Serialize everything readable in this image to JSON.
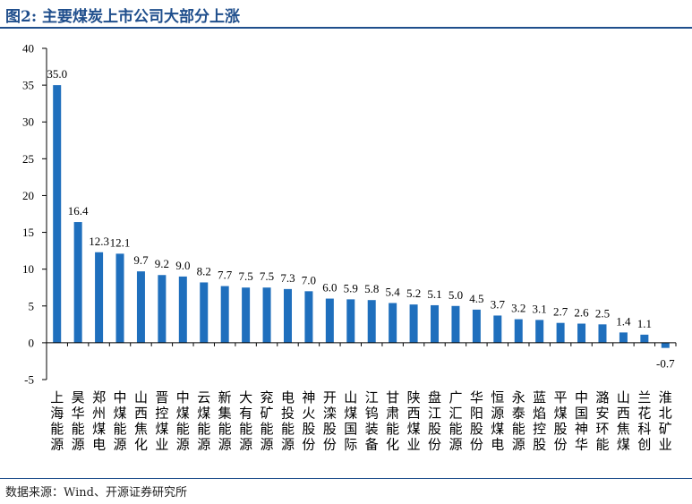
{
  "title": "图2:  主要煤炭上市公司大部分上涨",
  "source": "数据来源：Wind、开源证券研究所",
  "colors": {
    "bar": "#1f6fbd",
    "title": "#1f4e8c",
    "axis": "#000000"
  },
  "chart_data": {
    "type": "bar",
    "title": "",
    "xlabel": "",
    "ylabel": "",
    "ylim": [
      -5,
      40
    ],
    "yticks": [
      -5,
      0,
      5,
      10,
      15,
      20,
      25,
      30,
      35,
      40
    ],
    "grid": false,
    "legend": "none",
    "categories": [
      "上海能源",
      "昊华能源",
      "郑州煤电",
      "中煤能源",
      "山西焦化",
      "晋控煤业",
      "中煤能源",
      "云煤能源",
      "新集能源",
      "大有能源",
      "兖矿能源",
      "电投能源",
      "神火股份",
      "开滦股份",
      "山煤国际",
      "江钨装备",
      "甘肃能化",
      "陕西煤业",
      "盘江股份",
      "广汇能源",
      "华阳股份",
      "恒源煤电",
      "永泰能源",
      "蓝焰控股",
      "平煤股份",
      "中国神华",
      "潞安环能",
      "山西焦煤",
      "兰花科创",
      "淮北矿业"
    ],
    "values": [
      35.0,
      16.4,
      12.3,
      12.1,
      9.7,
      9.2,
      9.0,
      8.2,
      7.7,
      7.5,
      7.5,
      7.3,
      7.0,
      6.0,
      5.9,
      5.8,
      5.4,
      5.2,
      5.1,
      5.0,
      4.5,
      3.7,
      3.2,
      3.1,
      2.7,
      2.6,
      2.5,
      1.4,
      1.1,
      -0.7
    ],
    "data_labels": [
      "35.0",
      "16.4",
      "12.3",
      "12.1",
      "9.7",
      "9.2",
      "9.0",
      "8.2",
      "7.7",
      "7.5",
      "7.5",
      "7.3",
      "7.0",
      "6.0",
      "5.9",
      "5.8",
      "5.4",
      "5.2",
      "5.1",
      "5.0",
      "4.5",
      "3.7",
      "3.2",
      "3.1",
      "2.7",
      "2.6",
      "2.5",
      "1.4",
      "1.1",
      "-0.7"
    ]
  }
}
